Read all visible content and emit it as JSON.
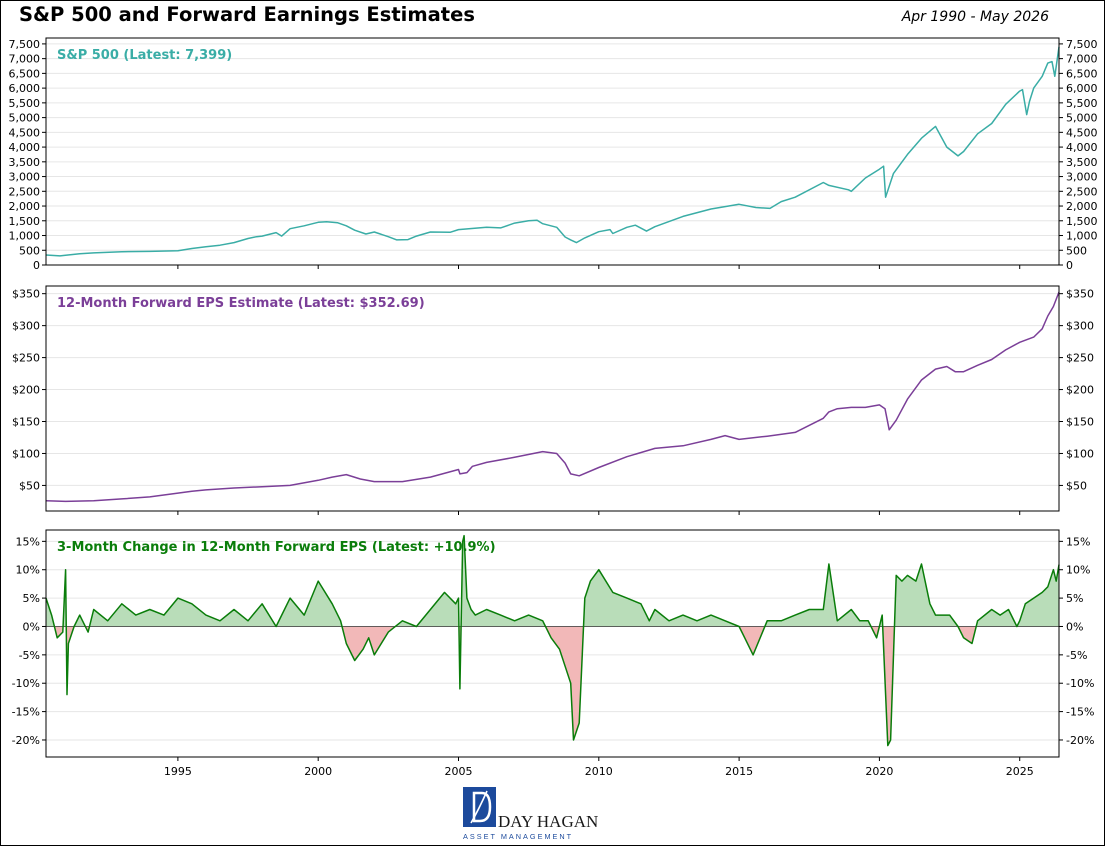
{
  "header": {
    "title": "S&P 500 and Forward Earnings Estimates",
    "subtitle": "Apr 1990 - May 2026"
  },
  "logo": {
    "name": "DAY HAGAN",
    "tagline": "ASSET MANAGEMENT"
  },
  "colors": {
    "sp500": "#3aada6",
    "eps": "#7b3f98",
    "change": "#0a7d0a",
    "positive_fill": "#b9ddb9",
    "negative_fill": "#f2b8b8",
    "grid": "#e6e6e6",
    "logo_blue": "#1c4a9c"
  },
  "chart_data": [
    {
      "type": "line",
      "annotation": "S&P 500 (Latest: 7,399)",
      "xlim": [
        1990.3,
        2026.4
      ],
      "ylim": [
        0,
        7700
      ],
      "yticks": [
        0,
        500,
        1000,
        1500,
        2000,
        2500,
        3000,
        3500,
        4000,
        4500,
        5000,
        5500,
        6000,
        6500,
        7000,
        7500
      ],
      "ytick_labels": [
        "0",
        "500",
        "1,000",
        "1,500",
        "2,000",
        "2,500",
        "3,000",
        "3,500",
        "4,000",
        "4,500",
        "5,000",
        "5,500",
        "6,000",
        "6,500",
        "7,000",
        "7,500"
      ],
      "grid": true,
      "series": [
        {
          "x": [
            1990.3,
            1990.8,
            1991.0,
            1991.5,
            1992.0,
            1993.0,
            1994.0,
            1995.0,
            1995.5,
            1996.0,
            1996.5,
            1997.0,
            1997.5,
            1997.8,
            1998.0,
            1998.5,
            1998.7,
            1999.0,
            1999.5,
            1999.8,
            2000.0,
            2000.3,
            2000.7,
            2001.0,
            2001.3,
            2001.7,
            2002.0,
            2002.5,
            2002.8,
            2003.2,
            2003.5,
            2004.0,
            2004.7,
            2005.0,
            2006.0,
            2006.5,
            2007.0,
            2007.5,
            2007.8,
            2008.0,
            2008.5,
            2008.8,
            2009.0,
            2009.2,
            2009.5,
            2010.0,
            2010.4,
            2010.5,
            2011.0,
            2011.3,
            2011.7,
            2012.0,
            2013.0,
            2014.0,
            2015.0,
            2015.6,
            2016.1,
            2016.5,
            2017.0,
            2018.0,
            2018.2,
            2018.9,
            2019.0,
            2019.5,
            2020.0,
            2020.15,
            2020.22,
            2020.5,
            2021.0,
            2021.5,
            2022.0,
            2022.4,
            2022.8,
            2023.0,
            2023.5,
            2024.0,
            2024.5,
            2025.0,
            2025.1,
            2025.25,
            2025.35,
            2025.5,
            2025.8,
            2026.0,
            2026.15,
            2026.25,
            2026.4
          ],
          "y": [
            340,
            310,
            330,
            380,
            410,
            450,
            460,
            480,
            560,
            620,
            670,
            760,
            900,
            960,
            980,
            1100,
            980,
            1230,
            1330,
            1400,
            1450,
            1470,
            1430,
            1330,
            1180,
            1050,
            1120,
            960,
            850,
            860,
            980,
            1120,
            1110,
            1200,
            1280,
            1260,
            1420,
            1500,
            1520,
            1400,
            1280,
            950,
            850,
            760,
            920,
            1130,
            1200,
            1070,
            1280,
            1350,
            1150,
            1300,
            1650,
            1900,
            2060,
            1950,
            1920,
            2150,
            2300,
            2800,
            2700,
            2550,
            2500,
            2950,
            3250,
            3350,
            2300,
            3100,
            3750,
            4300,
            4700,
            4000,
            3700,
            3850,
            4450,
            4800,
            5450,
            5900,
            5950,
            5100,
            5550,
            6000,
            6400,
            6850,
            6900,
            6400,
            7399
          ]
        }
      ]
    },
    {
      "type": "line",
      "annotation": "12-Month Forward EPS Estimate (Latest: $352.69)",
      "xlim": [
        1990.3,
        2026.4
      ],
      "ylim": [
        10,
        362
      ],
      "yticks": [
        50,
        100,
        150,
        200,
        250,
        300,
        350
      ],
      "ytick_labels": [
        "$50",
        "$100",
        "$150",
        "$200",
        "$250",
        "$300",
        "$350"
      ],
      "grid": true,
      "series": [
        {
          "x": [
            1990.3,
            1991.0,
            1992.0,
            1993.0,
            1994.0,
            1995.0,
            1995.5,
            1996.0,
            1997.0,
            1998.0,
            1999.0,
            2000.0,
            2000.5,
            2001.0,
            2001.5,
            2002.0,
            2002.5,
            2003.0,
            2004.0,
            2005.0,
            2005.05,
            2005.3,
            2005.5,
            2006.0,
            2007.0,
            2008.0,
            2008.5,
            2008.8,
            2009.0,
            2009.3,
            2010.0,
            2011.0,
            2012.0,
            2013.0,
            2014.0,
            2014.5,
            2015.0,
            2016.0,
            2017.0,
            2018.0,
            2018.2,
            2018.5,
            2019.0,
            2019.5,
            2020.0,
            2020.2,
            2020.35,
            2020.6,
            2021.0,
            2021.5,
            2022.0,
            2022.4,
            2022.7,
            2023.0,
            2023.5,
            2024.0,
            2024.5,
            2025.0,
            2025.5,
            2025.8,
            2026.0,
            2026.2,
            2026.4
          ],
          "y": [
            26,
            25,
            26,
            29,
            32,
            38,
            41,
            43,
            46,
            48,
            50,
            58,
            63,
            67,
            60,
            56,
            56,
            56,
            63,
            75,
            68,
            70,
            80,
            86,
            94,
            103,
            100,
            85,
            68,
            65,
            78,
            95,
            108,
            112,
            122,
            128,
            122,
            127,
            133,
            155,
            165,
            170,
            172,
            172,
            176,
            170,
            137,
            152,
            185,
            215,
            232,
            236,
            228,
            228,
            238,
            247,
            262,
            274,
            282,
            295,
            315,
            330,
            352.69
          ]
        }
      ]
    },
    {
      "type": "area",
      "annotation": "3-Month Change in 12-Month Forward EPS (Latest: +10.9%)",
      "xlim": [
        1990.3,
        2026.4
      ],
      "ylim": [
        -23,
        17
      ],
      "yticks": [
        -20,
        -15,
        -10,
        -5,
        0,
        5,
        10,
        15
      ],
      "ytick_labels": [
        "-20%",
        "-15%",
        "-10%",
        "-5%",
        "0%",
        "5%",
        "10%",
        "15%"
      ],
      "xticks": [
        1995,
        2000,
        2005,
        2010,
        2015,
        2020,
        2025
      ],
      "xtick_labels": [
        "1995",
        "2000",
        "2005",
        "2010",
        "2015",
        "2020",
        "2025"
      ],
      "grid": true,
      "series": [
        {
          "x": [
            1990.3,
            1990.5,
            1990.7,
            1990.9,
            1991.0,
            1991.05,
            1991.1,
            1991.3,
            1991.5,
            1991.8,
            1992.0,
            1992.5,
            1993.0,
            1993.5,
            1994.0,
            1994.5,
            1995.0,
            1995.5,
            1996.0,
            1996.5,
            1997.0,
            1997.5,
            1998.0,
            1998.5,
            1999.0,
            1999.5,
            2000.0,
            2000.5,
            2000.8,
            2001.0,
            2001.3,
            2001.6,
            2001.8,
            2002.0,
            2002.5,
            2003.0,
            2003.5,
            2004.0,
            2004.5,
            2004.9,
            2005.0,
            2005.05,
            2005.15,
            2005.2,
            2005.3,
            2005.45,
            2005.6,
            2006.0,
            2006.5,
            2007.0,
            2007.5,
            2008.0,
            2008.3,
            2008.6,
            2008.8,
            2009.0,
            2009.1,
            2009.3,
            2009.5,
            2009.7,
            2010.0,
            2010.5,
            2011.0,
            2011.5,
            2011.8,
            2012.0,
            2012.5,
            2013.0,
            2013.5,
            2014.0,
            2014.5,
            2015.0,
            2015.2,
            2015.5,
            2016.0,
            2016.5,
            2017.0,
            2017.5,
            2018.0,
            2018.2,
            2018.5,
            2019.0,
            2019.3,
            2019.6,
            2019.9,
            2020.1,
            2020.3,
            2020.4,
            2020.6,
            2020.8,
            2021.0,
            2021.3,
            2021.5,
            2021.8,
            2022.0,
            2022.5,
            2022.8,
            2023.0,
            2023.3,
            2023.5,
            2024.0,
            2024.3,
            2024.6,
            2024.9,
            2025.0,
            2025.2,
            2025.5,
            2025.8,
            2026.0,
            2026.2,
            2026.3,
            2026.4
          ],
          "y": [
            5,
            2,
            -2,
            -1,
            10,
            -12,
            -3,
            0,
            2,
            -1,
            3,
            1,
            4,
            2,
            3,
            2,
            5,
            4,
            2,
            1,
            3,
            1,
            4,
            0,
            5,
            2,
            8,
            4,
            1,
            -3,
            -6,
            -4,
            -2,
            -5,
            -1,
            1,
            0,
            3,
            6,
            4,
            5,
            -11,
            15,
            16,
            5,
            3,
            2,
            3,
            2,
            1,
            2,
            1,
            -2,
            -4,
            -7,
            -10,
            -20,
            -17,
            5,
            8,
            10,
            6,
            5,
            4,
            1,
            3,
            1,
            2,
            1,
            2,
            1,
            0,
            -2,
            -5,
            1,
            1,
            2,
            3,
            3,
            11,
            1,
            3,
            1,
            1,
            -2,
            2,
            -21,
            -20,
            9,
            8,
            9,
            8,
            11,
            4,
            2,
            2,
            0,
            -2,
            -3,
            1,
            3,
            2,
            3,
            0,
            1,
            4,
            5,
            6,
            7,
            10,
            8,
            10.9
          ]
        }
      ]
    }
  ]
}
